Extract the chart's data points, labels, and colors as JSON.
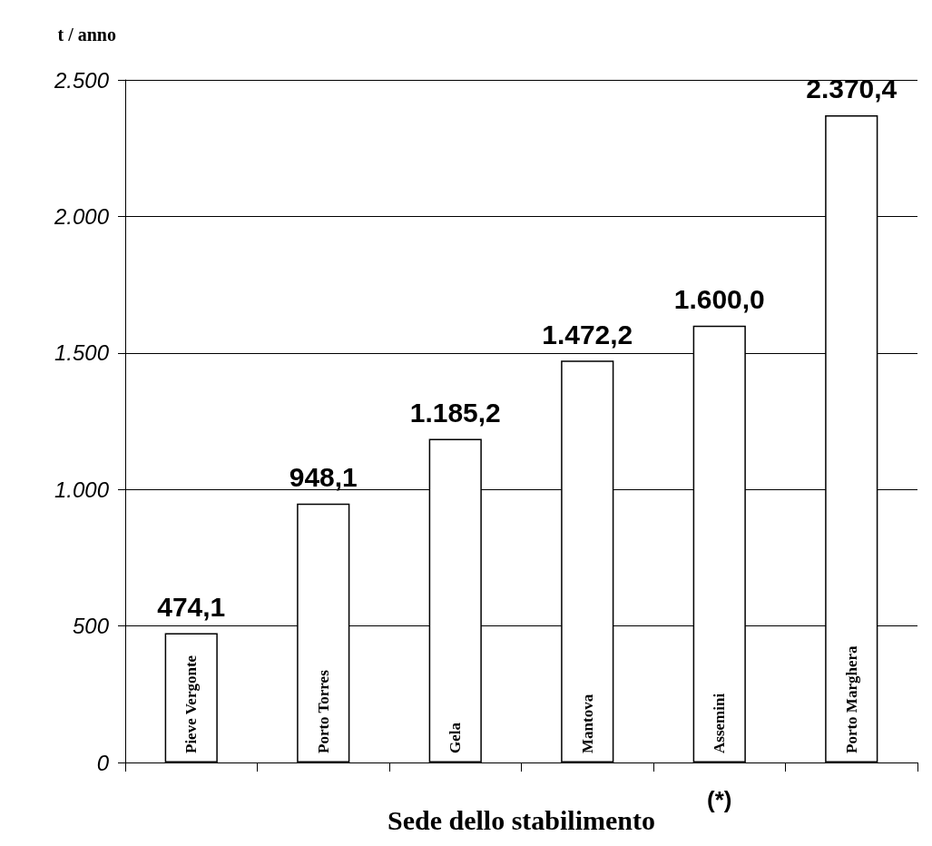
{
  "chart_data": {
    "type": "bar",
    "ylabel": "t / anno",
    "xlabel": "Sede dello stabilimento",
    "categories": [
      "Pieve Vergonte",
      "Porto Torres",
      "Gela",
      "Mantova",
      "Assemini",
      "Porto Marghera"
    ],
    "values": [
      474.1,
      948.1,
      1185.2,
      1472.2,
      1600.0,
      2370.4
    ],
    "value_labels": [
      "474,1",
      "948,1",
      "1.185,2",
      "1.472,2",
      "1.600,0",
      "2.370,4"
    ],
    "color": "#ffffff",
    "ylim": [
      0,
      2500
    ],
    "yticks": [
      0,
      {
        "value": 500,
        "label": "500"
      },
      {
        "value": 1000,
        "label": "1.000"
      },
      {
        "value": 1500,
        "label": "1.500"
      },
      {
        "value": 2000,
        "label": "2.000"
      },
      {
        "value": 2500,
        "label": "2.500"
      }
    ],
    "grid": "y",
    "annotations": [
      "(*)"
    ]
  }
}
